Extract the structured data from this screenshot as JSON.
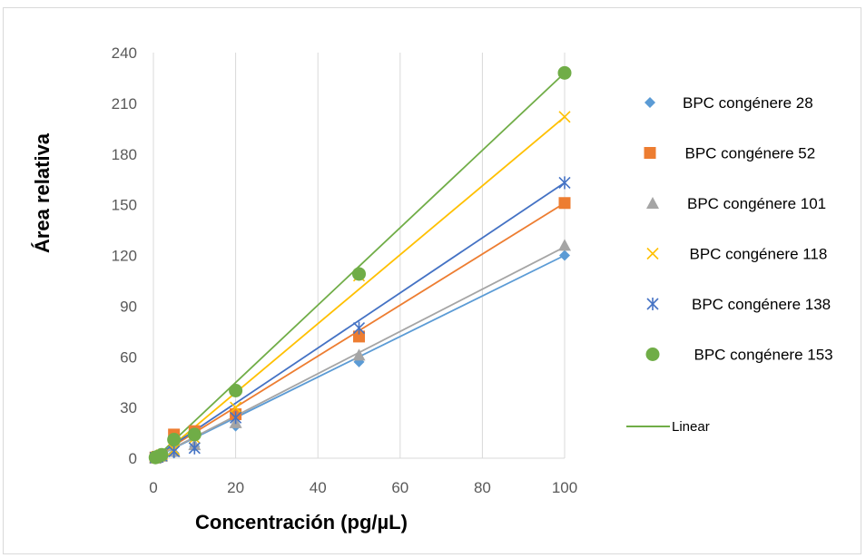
{
  "chart_data": {
    "type": "scatter",
    "title": "",
    "xlabel": "Concentración (pg/µL)",
    "ylabel": "Área relativa",
    "xlim": [
      0,
      100
    ],
    "ylim": [
      0,
      240
    ],
    "xticks": [
      0,
      20,
      40,
      60,
      80,
      100
    ],
    "yticks": [
      0,
      30,
      60,
      90,
      120,
      150,
      180,
      210,
      240
    ],
    "grid": "vertical",
    "legend_position": "right",
    "x": [
      0.5,
      1,
      2,
      5,
      10,
      20,
      50,
      100
    ],
    "series": [
      {
        "name": "BPC congénere 28",
        "marker": "diamond",
        "color": "#5b9bd5",
        "values": [
          0.3,
          0.6,
          1.2,
          3,
          7,
          19,
          57,
          120
        ],
        "fit": [
          0,
          1.2
        ]
      },
      {
        "name": "BPC congénere 52",
        "marker": "square",
        "color": "#ed7d31",
        "values": [
          0.4,
          0.8,
          1.5,
          14,
          16,
          26,
          72,
          151
        ],
        "fit": [
          0,
          1.51
        ]
      },
      {
        "name": "BPC congénere 101",
        "marker": "triangle",
        "color": "#a5a5a5",
        "values": [
          0.3,
          0.6,
          1.3,
          4,
          8,
          21,
          61,
          126
        ],
        "fit": [
          0,
          1.25
        ]
      },
      {
        "name": "BPC congénere 118",
        "marker": "x",
        "color": "#ffc000",
        "values": [
          0.4,
          0.9,
          1.8,
          5,
          12,
          30,
          108,
          202
        ],
        "fit": [
          -2,
          2.04
        ]
      },
      {
        "name": "BPC congénere 138",
        "marker": "asterisk",
        "color": "#4472c4",
        "values": [
          0.3,
          0.7,
          1.5,
          4,
          6,
          24,
          77,
          163
        ],
        "fit": [
          0,
          1.63
        ]
      },
      {
        "name": "BPC congénere 153",
        "marker": "circle",
        "color": "#70ad47",
        "values": [
          0.4,
          0.9,
          2,
          11,
          14,
          40,
          109,
          228
        ],
        "fit": [
          -1,
          2.29
        ]
      }
    ],
    "trendline_legend": {
      "label": "Linear",
      "color": "#70ad47"
    }
  }
}
